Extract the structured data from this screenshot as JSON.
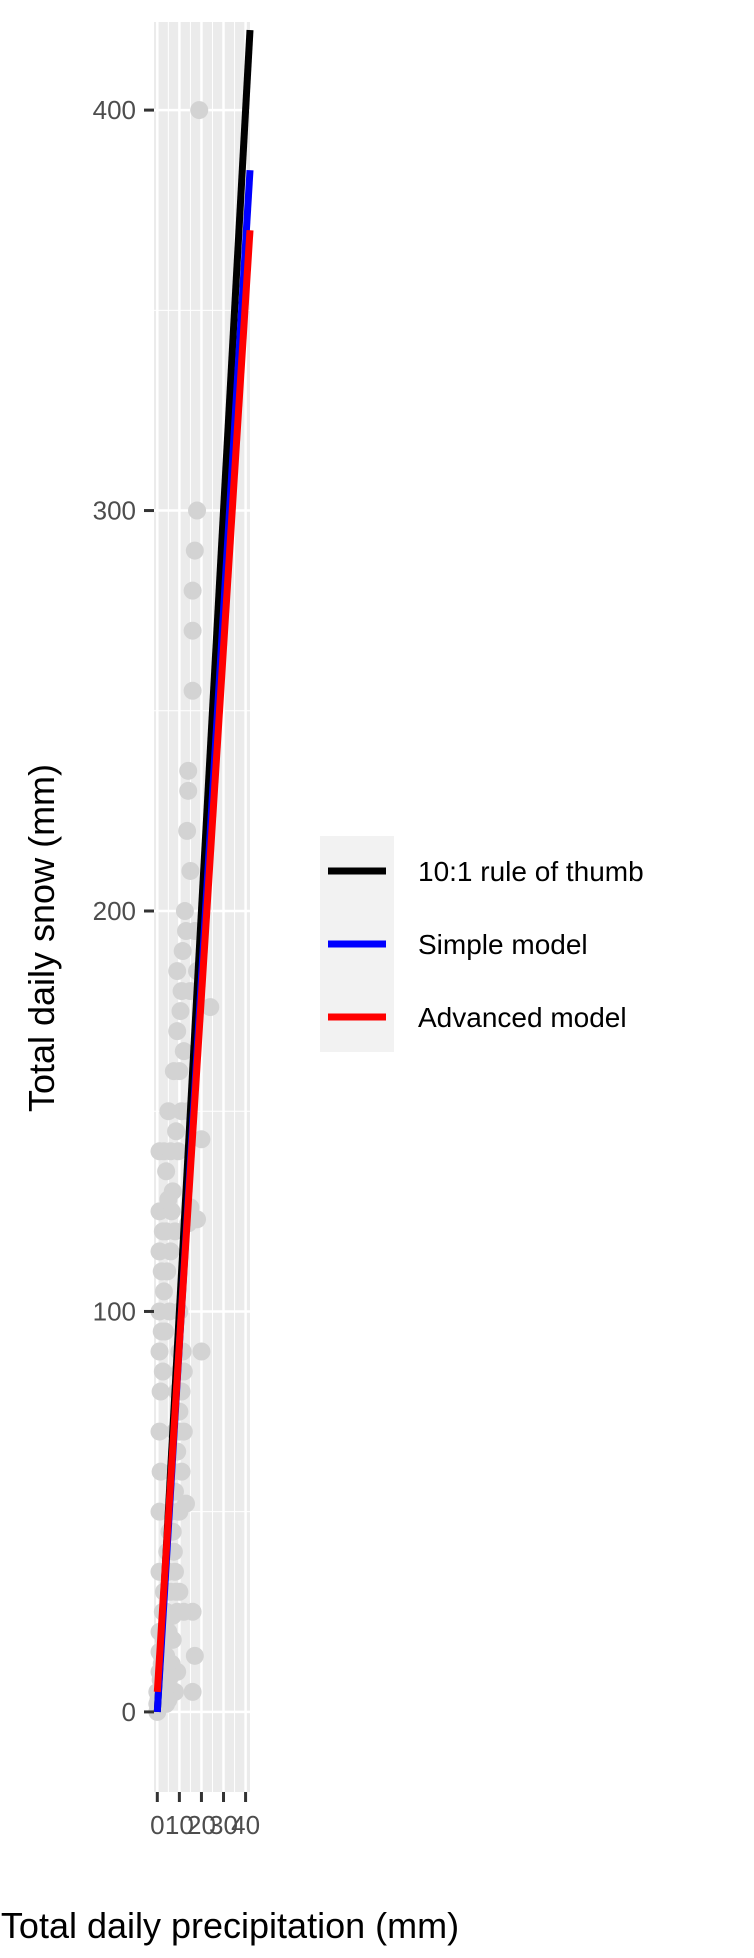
{
  "chart_data": {
    "type": "scatter",
    "xlabel": "Total daily precipitation (mm)",
    "ylabel": "Total daily snow (mm)",
    "xlim": [
      -1.5,
      42
    ],
    "ylim": [
      -20,
      422
    ],
    "x_ticks": [
      0,
      10,
      20,
      30,
      40
    ],
    "y_ticks": [
      0,
      100,
      200,
      300,
      400
    ],
    "grid": true,
    "legend_position": "right",
    "colors": {
      "panel": "#ebebeb",
      "grid": "#ffffff",
      "points": "#d3d3d3",
      "rule": "#000000",
      "simple": "#0000ff",
      "advanced": "#ff0000",
      "legend_bg": "#f2f2f2"
    },
    "points": [
      [
        0,
        0
      ],
      [
        0,
        2
      ],
      [
        0,
        5
      ],
      [
        0.5,
        3
      ],
      [
        1,
        10
      ],
      [
        1,
        5
      ],
      [
        1,
        15
      ],
      [
        1.5,
        8
      ],
      [
        2,
        4
      ],
      [
        2,
        20
      ],
      [
        2,
        12
      ],
      [
        2.5,
        25
      ],
      [
        3,
        6
      ],
      [
        3,
        30
      ],
      [
        3,
        18
      ],
      [
        3.5,
        10
      ],
      [
        4,
        2
      ],
      [
        4,
        14
      ],
      [
        4,
        24
      ],
      [
        4.5,
        40
      ],
      [
        5,
        8
      ],
      [
        5,
        20
      ],
      [
        5,
        35
      ],
      [
        5.5,
        45
      ],
      [
        6,
        30
      ],
      [
        6,
        50
      ],
      [
        6.5,
        12
      ],
      [
        7,
        24
      ],
      [
        7,
        60
      ],
      [
        7.5,
        40
      ],
      [
        8,
        55
      ],
      [
        8,
        70
      ],
      [
        8.5,
        30
      ],
      [
        9,
        80
      ],
      [
        9,
        65
      ],
      [
        9.5,
        50
      ],
      [
        10,
        90
      ],
      [
        10,
        75
      ],
      [
        10,
        100
      ],
      [
        1,
        20
      ],
      [
        1,
        35
      ],
      [
        1,
        50
      ],
      [
        1,
        70
      ],
      [
        1,
        90
      ],
      [
        1,
        100
      ],
      [
        1,
        115
      ],
      [
        1,
        125
      ],
      [
        1,
        140
      ],
      [
        1.5,
        60
      ],
      [
        1.5,
        80
      ],
      [
        2,
        95
      ],
      [
        2,
        110
      ],
      [
        2.5,
        85
      ],
      [
        2.5,
        120
      ],
      [
        3,
        140
      ],
      [
        3,
        105
      ],
      [
        3.5,
        95
      ],
      [
        4,
        120
      ],
      [
        4,
        135
      ],
      [
        4.5,
        110
      ],
      [
        5,
        128
      ],
      [
        5,
        150
      ],
      [
        5.5,
        100
      ],
      [
        6,
        115
      ],
      [
        6,
        140
      ],
      [
        6.5,
        125
      ],
      [
        7,
        130
      ],
      [
        7.5,
        160
      ],
      [
        8,
        120
      ],
      [
        8.5,
        145
      ],
      [
        9,
        170
      ],
      [
        9,
        185
      ],
      [
        9.5,
        140
      ],
      [
        10,
        160
      ],
      [
        10.5,
        175
      ],
      [
        11,
        180
      ],
      [
        11,
        150
      ],
      [
        11.5,
        190
      ],
      [
        12,
        165
      ],
      [
        12.5,
        200
      ],
      [
        13,
        195
      ],
      [
        13.5,
        220
      ],
      [
        14,
        230
      ],
      [
        14,
        235
      ],
      [
        15,
        180
      ],
      [
        15,
        210
      ],
      [
        16,
        255
      ],
      [
        16,
        270
      ],
      [
        16,
        280
      ],
      [
        17,
        195
      ],
      [
        17,
        290
      ],
      [
        18,
        185
      ],
      [
        18,
        300
      ],
      [
        10,
        30
      ],
      [
        10,
        50
      ],
      [
        10,
        70
      ],
      [
        10,
        85
      ],
      [
        11,
        60
      ],
      [
        11,
        80
      ],
      [
        11.5,
        90
      ],
      [
        12,
        70
      ],
      [
        12,
        85
      ],
      [
        13,
        52
      ],
      [
        14,
        122
      ],
      [
        14,
        150
      ],
      [
        15,
        126
      ],
      [
        16,
        25
      ],
      [
        16,
        5
      ],
      [
        17,
        14
      ],
      [
        18,
        123
      ],
      [
        20,
        90
      ],
      [
        20,
        143
      ],
      [
        4,
        25
      ],
      [
        6,
        24
      ],
      [
        7,
        18
      ],
      [
        8,
        5
      ],
      [
        9,
        10
      ],
      [
        5,
        3
      ],
      [
        3,
        2
      ],
      [
        6,
        9
      ],
      [
        2,
        14
      ],
      [
        3,
        20
      ],
      [
        4,
        30
      ],
      [
        9,
        25
      ],
      [
        12,
        25
      ],
      [
        8,
        35
      ],
      [
        7,
        45
      ],
      [
        19,
        400
      ],
      [
        24,
        176
      ]
    ],
    "series": [
      {
        "name": "10:1 rule of thumb",
        "x": [
          0,
          42
        ],
        "y": [
          0,
          420
        ]
      },
      {
        "name": "Simple model",
        "x": [
          0,
          42
        ],
        "y": [
          0,
          385
        ]
      },
      {
        "name": "Advanced model",
        "x": [
          0,
          42
        ],
        "y": [
          5,
          370
        ]
      }
    ],
    "legend": [
      "10:1 rule of thumb",
      "Simple model",
      "Advanced model"
    ]
  }
}
